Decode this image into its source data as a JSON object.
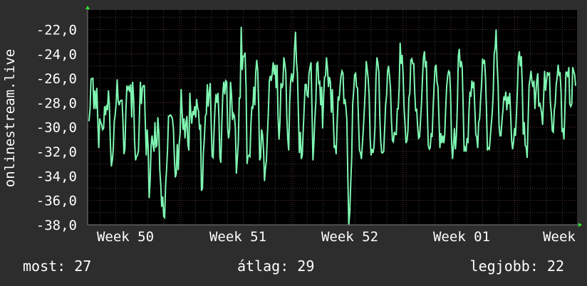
{
  "chart_data": {
    "type": "line",
    "ylabel": "onlinestream.live",
    "ylim": [
      -38,
      -20.4
    ],
    "yticks": [
      -22,
      -24,
      -26,
      -28,
      -30,
      -32,
      -34,
      -36,
      -38
    ],
    "ytick_labels": [
      "-22,0",
      "-24,0",
      "-26,0",
      "-28,0",
      "-30,0",
      "-32,0",
      "-34,0",
      "-36,0",
      "-38,0"
    ],
    "x_tick_labels": [
      "Week 50",
      "Week 51",
      "Week 52",
      "Week 01",
      "Week"
    ],
    "grid": true,
    "colors": {
      "background": "#2d2d2d",
      "plot": "#000000",
      "line": "#7ff7b2",
      "grid": "#404040",
      "grid_major": "#5a2a2a",
      "axis_arrow": "#2ee82e"
    },
    "series": [
      {
        "values": [
          -29.5,
          -28.5,
          -26.1,
          -26,
          -26,
          -28.5,
          -27,
          -28.5,
          -26.8,
          -29.3,
          -31.7,
          -29.3,
          -29.6,
          -29.8,
          -30.2,
          -30.1,
          -28.3,
          -29,
          -28.2,
          -28.6,
          -27,
          -28.3,
          -31.2,
          -33.2,
          -32.7,
          -31.8,
          -29.5,
          -29,
          -28,
          -26.1,
          -27.8,
          -28.2,
          -27.9,
          -27.8,
          -27.8,
          -29.5,
          -32.2,
          -31.8,
          -28.7,
          -26.6,
          -26.9,
          -26.7,
          -27.1,
          -26.5,
          -29.2,
          -26.3,
          -27.7,
          -31.1,
          -32.7,
          -32.4,
          -32.3,
          -31.9,
          -29.2,
          -26.3,
          -28.1,
          -26.8,
          -26.6,
          -26.6,
          -29.5,
          -32.3,
          -30.2,
          -31.7,
          -35.8,
          -34.5,
          -31.6,
          -30.7,
          -31.4,
          -32,
          -29.6,
          -31.6,
          -31.5,
          -29.2,
          -30.5,
          -33.5,
          -34.7,
          -36.5,
          -35.7,
          -37.3,
          -37.4,
          -34.7,
          -33.5,
          -31.8,
          -29.1,
          -29.1,
          -29,
          -29.1,
          -29.3,
          -30.1,
          -32.4,
          -34.1,
          -33.8,
          -31.4,
          -33.5,
          -31.4,
          -30.5,
          -26.9,
          -28.7,
          -30.2,
          -29.3,
          -30.9,
          -29.6,
          -29.1,
          -31.4,
          -31.9,
          -27.2,
          -28.9,
          -29.7,
          -28.7,
          -29,
          -28.3,
          -29.2,
          -27.7,
          -28.4,
          -28.7,
          -30.2,
          -29.8,
          -35.2,
          -35,
          -32.1,
          -30.9,
          -29.1,
          -28.9,
          -26.5,
          -28.3,
          -27.2,
          -26.4,
          -29.5,
          -32.4,
          -32.5,
          -30.3,
          -28.3,
          -27.3,
          -28,
          -27.2,
          -29.1,
          -32.5,
          -32.9,
          -29.7,
          -27.2,
          -26.3,
          -27.3,
          -26.2,
          -26.3,
          -30.1,
          -30.9,
          -30.2,
          -26.3,
          -27.3,
          -29.4,
          -28.9,
          -29.1,
          -30.1,
          -33.8,
          -32.5,
          -31.3,
          -27.6,
          -27.6,
          -21.8,
          -25.3,
          -24.2,
          -24.2,
          -23.9,
          -26.7,
          -33,
          -32.4,
          -32.3,
          -32.4,
          -29.8,
          -28.3,
          -28.5,
          -26.7,
          -28.2,
          -25.5,
          -24.5,
          -25.3,
          -28.2,
          -32.7,
          -32.5,
          -30.2,
          -30.6,
          -31.8,
          -34.4,
          -33.4,
          -32.7,
          -30.7,
          -28.8,
          -26.2,
          -25.8,
          -26.2,
          -25.6,
          -24.7,
          -25.7,
          -24.9,
          -26.8,
          -24.9,
          -29.1,
          -31,
          -29.6,
          -26.4,
          -26.8,
          -26.5,
          -24.3,
          -24.8,
          -25.5,
          -29.1,
          -30.9,
          -31.9,
          -28,
          -26.2,
          -25.6,
          -26.3,
          -25.7,
          -23.7,
          -22.2,
          -24.7,
          -25.6,
          -28.9,
          -32.1,
          -30.4,
          -32.6,
          -32.3,
          -30.2,
          -28.4,
          -26.5,
          -26.5,
          -27.4,
          -27.5,
          -25.6,
          -25.1,
          -24.7,
          -28.4,
          -32.7,
          -31.3,
          -29.3,
          -27.9,
          -24.8,
          -24.7,
          -26.4,
          -26.3,
          -28.2,
          -26.7,
          -30.1,
          -27.5,
          -25.9,
          -25.8,
          -24.3,
          -25.2,
          -26.7,
          -25.9,
          -26.3,
          -28.8,
          -26.9,
          -29.3,
          -31.7,
          -31.5,
          -32.2,
          -29.6,
          -27.5,
          -27.8,
          -26.7,
          -25.8,
          -25.4,
          -25.6,
          -28.1,
          -27.7,
          -28.3,
          -29.4,
          -34.2,
          -38,
          -37,
          -34.5,
          -32.5,
          -28.1,
          -27.1,
          -25.7,
          -25.6,
          -26.7,
          -26.8,
          -29.4,
          -31.9,
          -32.1,
          -32.6,
          -31.4,
          -30.2,
          -28.6,
          -26.9,
          -24.6,
          -25.3,
          -26,
          -27.4,
          -30.9,
          -32.3,
          -31.8,
          -32.1,
          -31.6,
          -30,
          -26.1,
          -24.3,
          -24.7,
          -25.5,
          -29.3,
          -31.2,
          -32.1,
          -32.1,
          -32,
          -30.1,
          -28.2,
          -27.4,
          -25.4,
          -25,
          -25.8,
          -26.8,
          -29.5,
          -31.1,
          -31.2,
          -30.4,
          -30.6,
          -30.6,
          -28.5,
          -28.5,
          -26.7,
          -23.1,
          -24.8,
          -24.1,
          -25.6,
          -28.4,
          -29.7,
          -31.3,
          -31.1,
          -30.3,
          -27.6,
          -27.2,
          -24.5,
          -24.4,
          -24.8,
          -24.8,
          -27,
          -28.7,
          -28.5,
          -29.9,
          -30.9,
          -30.8,
          -29.5,
          -28,
          -26.1,
          -24.3,
          -23.8,
          -25.1,
          -24.6,
          -28.5,
          -31.5,
          -31.8,
          -31.7,
          -30.5,
          -30.8,
          -28.4,
          -26.6,
          -25.1,
          -24.9,
          -26.3,
          -26.7,
          -29.3,
          -31.7,
          -30.5,
          -31.3,
          -30.7,
          -31.3,
          -30.6,
          -28.4,
          -26.7,
          -25.8,
          -25.4,
          -25.5,
          -27.2,
          -31,
          -32.6,
          -31.5,
          -30.1,
          -31.8,
          -30.7,
          -28.3,
          -24.2,
          -23.6,
          -25.1,
          -24.6,
          -25.1,
          -28.4,
          -32,
          -31.7,
          -32,
          -30.9,
          -31.3,
          -28.7,
          -27.1,
          -27.5,
          -26.2,
          -26.8,
          -26.3,
          -28.4,
          -30.6,
          -30.8,
          -31.7,
          -29.6,
          -29.3,
          -27.7,
          -26.5,
          -24.4,
          -24.8,
          -24.5,
          -25.9,
          -28.4,
          -31.9,
          -31.7,
          -31.8,
          -30.8,
          -29.8,
          -28.8,
          -27.2,
          -24,
          -23.5,
          -22,
          -24.8,
          -26.5,
          -29.8,
          -30.7,
          -30.7,
          -29.5,
          -28.6,
          -27.5,
          -27.8,
          -27.1,
          -28.6,
          -27.5,
          -28.1,
          -27.2,
          -28.9,
          -31.1,
          -31.8,
          -31.2,
          -30.1,
          -30.7,
          -28.9,
          -26.7,
          -24.3,
          -23.8,
          -25,
          -24.2,
          -26.8,
          -30.6,
          -29.6,
          -31.5,
          -31.6,
          -32.5,
          -29.6,
          -26.6,
          -26,
          -25.4,
          -26.3,
          -26.7,
          -26.2,
          -28.5,
          -27.2,
          -26.1,
          -25.6,
          -28.3,
          -28,
          -28.4,
          -28.9,
          -29.8,
          -27.6,
          -25.4,
          -27,
          -26.2,
          -25.5,
          -25.7,
          -25.6,
          -28,
          -28.9,
          -30.3,
          -30.4,
          -28.6,
          -28.1,
          -26.5,
          -25.9,
          -24.9,
          -25.8,
          -25.5,
          -27.1,
          -30.4,
          -30.1,
          -31,
          -28.6,
          -25.5,
          -25.5,
          -25.9,
          -25.1,
          -28.1,
          -28.3,
          -28.1,
          -25.1,
          -25.4,
          -25.7,
          -26.6
        ]
      }
    ]
  },
  "stats": {
    "now": "most: 27",
    "avg": "átlag: 29",
    "best": "legjobb: 22"
  }
}
